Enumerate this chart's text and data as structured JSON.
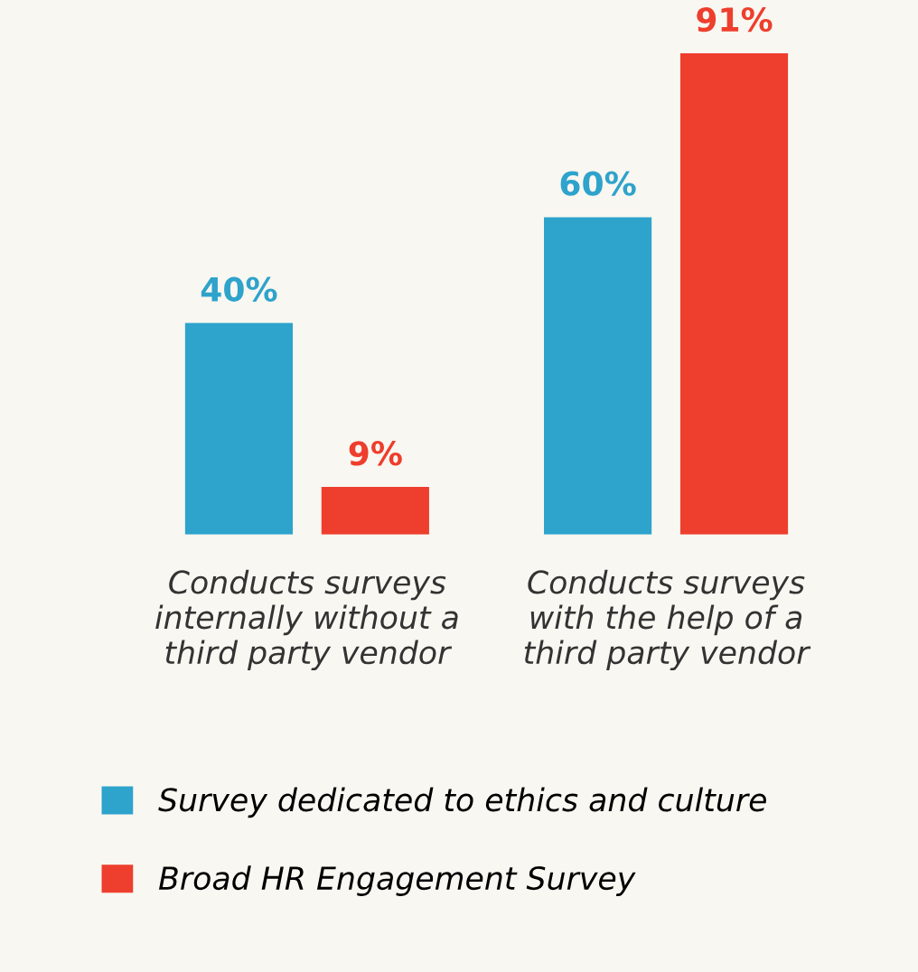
{
  "chart_data": {
    "type": "bar",
    "categories": [
      "Conducts surveys\ninternally without a\nthird party vendor",
      "Conducts surveys\nwith the help of a\nthird party vendor"
    ],
    "series": [
      {
        "name": "Survey dedicated to ethics and culture",
        "color": "#2ea3cc",
        "values": [
          40,
          60
        ],
        "value_labels": [
          "40%",
          "60%"
        ]
      },
      {
        "name": "Broad HR Engagement Survey",
        "color": "#ee3e2d",
        "values": [
          9,
          91
        ],
        "value_labels": [
          "9%",
          "91%"
        ]
      }
    ],
    "legend": "bottom",
    "grid": false
  }
}
